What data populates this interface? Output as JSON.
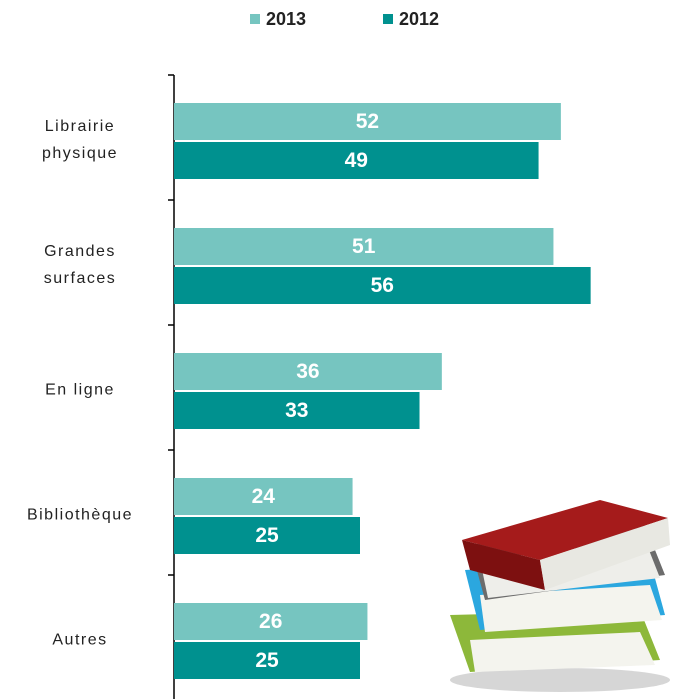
{
  "chart_data": {
    "type": "hbar",
    "categories": [
      "Librairie\nphysique",
      "Grandes\nsurfaces",
      "En ligne",
      "Bibliothèque",
      "Autres"
    ],
    "series": [
      {
        "name": "2013",
        "color": "#76c5c0",
        "values": [
          52,
          51,
          36,
          24,
          26
        ]
      },
      {
        "name": "2012",
        "color": "#00918f",
        "values": [
          49,
          56,
          33,
          25,
          25
        ]
      }
    ],
    "legend": "top"
  }
}
